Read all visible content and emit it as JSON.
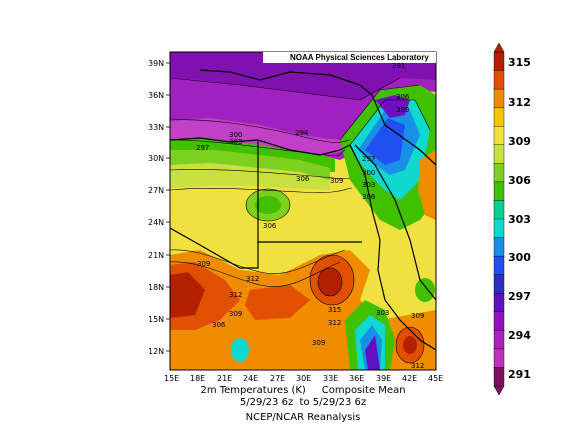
{
  "banner": "NOAA Physical Sciences Laboratory",
  "caption": {
    "line1_left": "2m Temperatures (K)",
    "line1_right": "Composite Mean",
    "line2": "5/29/23 6z  to 5/29/23 6z",
    "line3": "NCEP/NCAR Reanalysis"
  },
  "axes": {
    "lon_ticks": [
      "15E",
      "18E",
      "21E",
      "24E",
      "27E",
      "30E",
      "33E",
      "36E",
      "39E",
      "42E",
      "45E"
    ],
    "lat_ticks": [
      "39N",
      "36N",
      "33N",
      "30N",
      "27N",
      "24N",
      "21N",
      "18N",
      "15N",
      "12N"
    ]
  },
  "colorbar": {
    "levels": [
      "315",
      "312",
      "309",
      "306",
      "303",
      "300",
      "297",
      "294",
      "291"
    ],
    "colors": [
      "#b22000",
      "#e05000",
      "#f08c00",
      "#f5c400",
      "#f0e040",
      "#c8e040",
      "#7ed020",
      "#40c000",
      "#00d090",
      "#10d8d0",
      "#1890e8",
      "#2050f0",
      "#3030c0",
      "#6010c0",
      "#9010c0",
      "#b020c0",
      "#c030c0",
      "#801060"
    ]
  },
  "contour_labels": [
    {
      "text": "297"
    },
    {
      "text": "300"
    },
    {
      "text": "303"
    },
    {
      "text": "294"
    },
    {
      "text": "306"
    },
    {
      "text": "309"
    },
    {
      "text": "297"
    },
    {
      "text": "300"
    },
    {
      "text": "303"
    },
    {
      "text": "306"
    },
    {
      "text": "309"
    },
    {
      "text": "306"
    },
    {
      "text": "306"
    },
    {
      "text": "309"
    },
    {
      "text": "312"
    },
    {
      "text": "312"
    },
    {
      "text": "309"
    },
    {
      "text": "306"
    },
    {
      "text": "315"
    },
    {
      "text": "312"
    },
    {
      "text": "309"
    },
    {
      "text": "303"
    },
    {
      "text": "309"
    },
    {
      "text": "312"
    },
    {
      "text": "291"
    }
  ]
}
